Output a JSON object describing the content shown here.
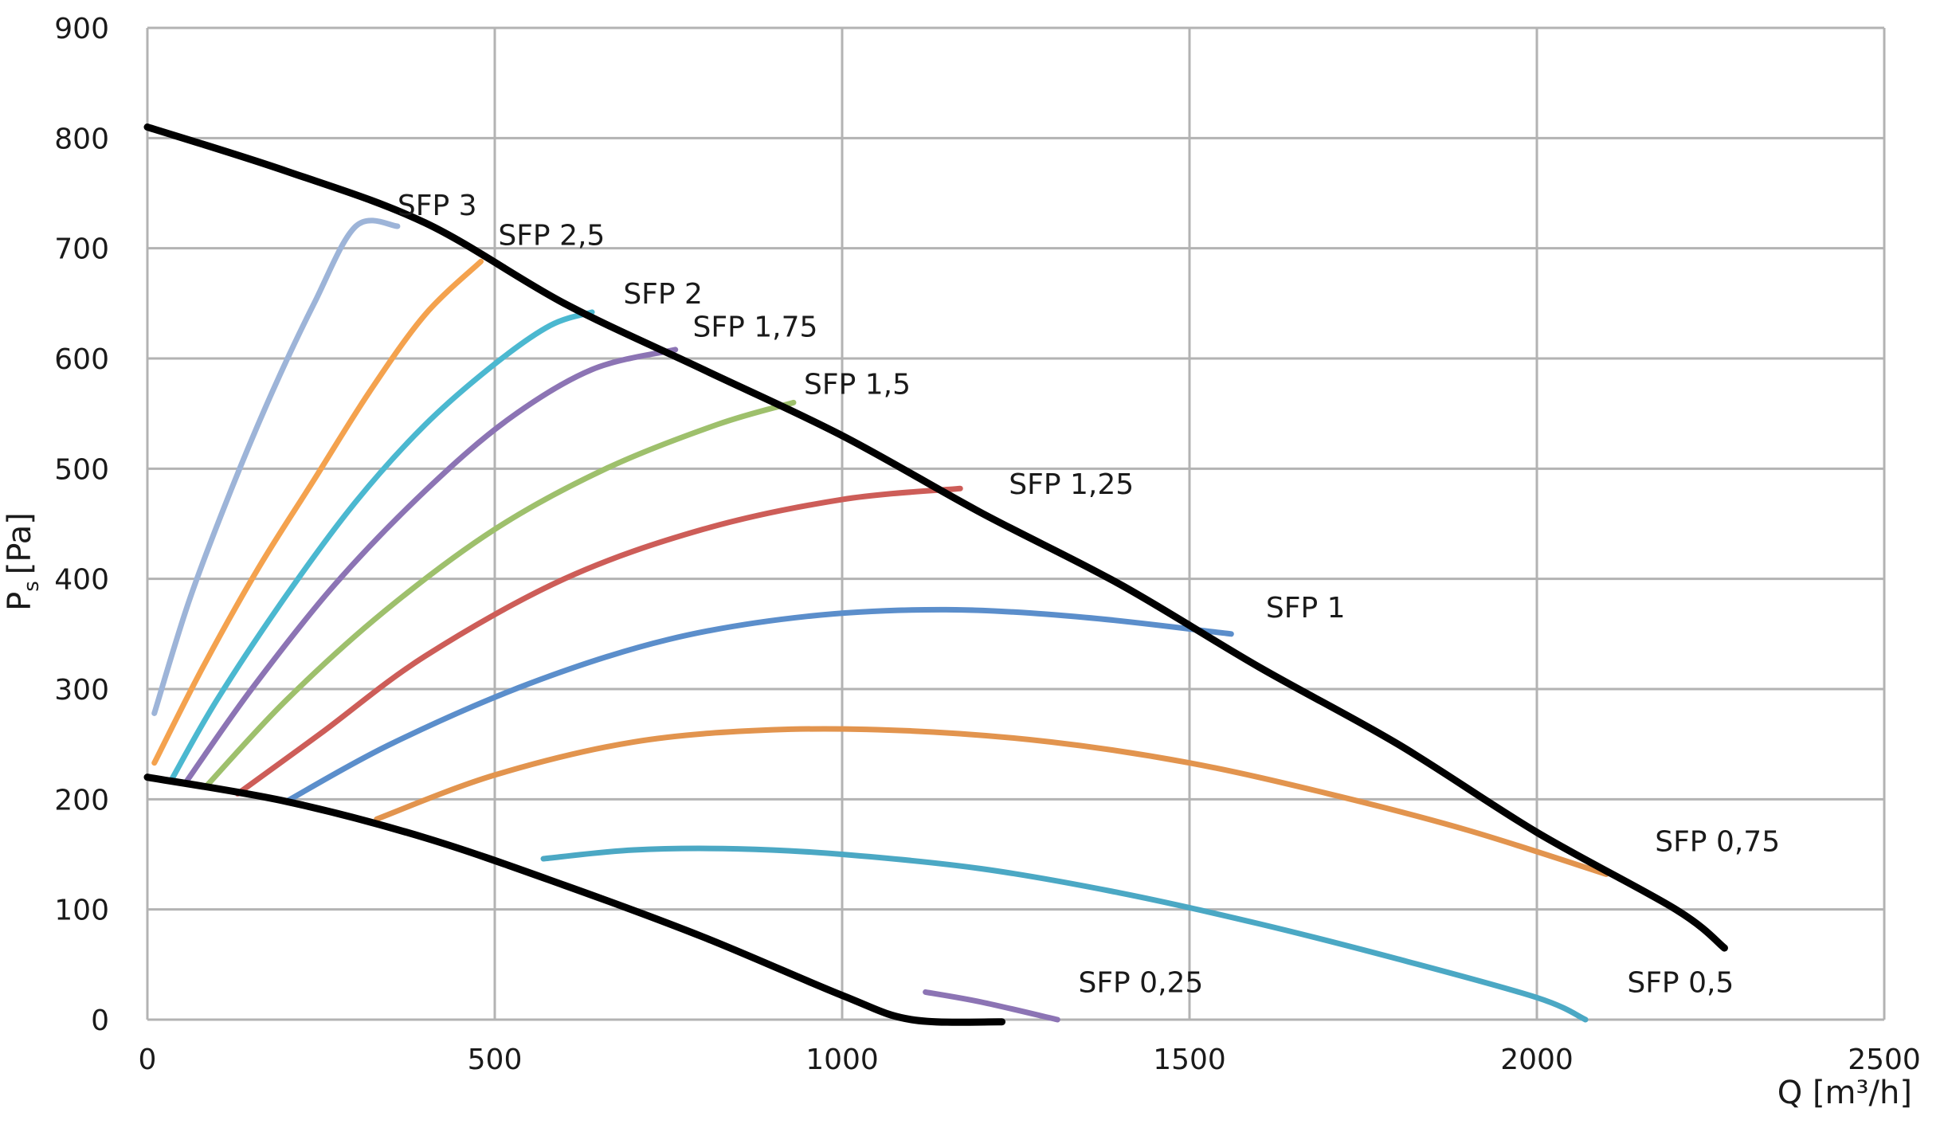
{
  "chart_data": {
    "type": "line",
    "xlabel": "Q [m³/h]",
    "ylabel_main": "P",
    "ylabel_sub": "s",
    "ylabel_unit": "[Pa]",
    "xlim": [
      0,
      2500
    ],
    "ylim": [
      0,
      900
    ],
    "xticks": [
      0,
      500,
      1000,
      1500,
      2000,
      2500
    ],
    "yticks": [
      0,
      100,
      200,
      300,
      400,
      500,
      600,
      700,
      800,
      900
    ],
    "grid": true,
    "legend": "none",
    "series": [
      {
        "name": "SFP 3",
        "color": "#9db4d8",
        "points": [
          [
            10,
            278
          ],
          [
            60,
            380
          ],
          [
            120,
            480
          ],
          [
            180,
            570
          ],
          [
            240,
            650
          ],
          [
            300,
            720
          ],
          [
            360,
            720
          ]
        ]
      },
      {
        "name": "SFP 2,5",
        "color": "#f4a24e",
        "points": [
          [
            10,
            233
          ],
          [
            80,
            320
          ],
          [
            160,
            410
          ],
          [
            240,
            490
          ],
          [
            320,
            570
          ],
          [
            400,
            640
          ],
          [
            480,
            688
          ]
        ]
      },
      {
        "name": "SFP 2",
        "color": "#4bb8d0",
        "points": [
          [
            35,
            218
          ],
          [
            100,
            290
          ],
          [
            200,
            385
          ],
          [
            300,
            470
          ],
          [
            400,
            540
          ],
          [
            500,
            595
          ],
          [
            580,
            630
          ],
          [
            640,
            642
          ]
        ]
      },
      {
        "name": "SFP 1,75",
        "color": "#8c74b4",
        "points": [
          [
            55,
            215
          ],
          [
            150,
            300
          ],
          [
            270,
            395
          ],
          [
            400,
            480
          ],
          [
            520,
            545
          ],
          [
            640,
            590
          ],
          [
            760,
            608
          ]
        ]
      },
      {
        "name": "SFP 1,5",
        "color": "#9ec06c",
        "points": [
          [
            85,
            212
          ],
          [
            200,
            290
          ],
          [
            340,
            370
          ],
          [
            500,
            445
          ],
          [
            660,
            500
          ],
          [
            820,
            540
          ],
          [
            930,
            560
          ]
        ]
      },
      {
        "name": "SFP 1,25",
        "color": "#cd5d58",
        "points": [
          [
            130,
            205
          ],
          [
            250,
            260
          ],
          [
            400,
            330
          ],
          [
            600,
            400
          ],
          [
            800,
            445
          ],
          [
            1000,
            472
          ],
          [
            1170,
            482
          ]
        ]
      },
      {
        "name": "SFP 1",
        "color": "#5b8ecb",
        "points": [
          [
            200,
            198
          ],
          [
            350,
            250
          ],
          [
            550,
            305
          ],
          [
            750,
            345
          ],
          [
            950,
            366
          ],
          [
            1150,
            372
          ],
          [
            1350,
            365
          ],
          [
            1560,
            350
          ]
        ]
      },
      {
        "name": "SFP 0,75",
        "color": "#e2944e",
        "points": [
          [
            330,
            182
          ],
          [
            500,
            222
          ],
          [
            700,
            252
          ],
          [
            900,
            263
          ],
          [
            1100,
            262
          ],
          [
            1300,
            252
          ],
          [
            1500,
            233
          ],
          [
            1700,
            205
          ],
          [
            1900,
            172
          ],
          [
            2100,
            132
          ]
        ]
      },
      {
        "name": "SFP 0,5",
        "color": "#4ba8c4",
        "points": [
          [
            570,
            146
          ],
          [
            700,
            154
          ],
          [
            850,
            155
          ],
          [
            1000,
            150
          ],
          [
            1200,
            137
          ],
          [
            1400,
            115
          ],
          [
            1600,
            87
          ],
          [
            1800,
            55
          ],
          [
            2000,
            20
          ],
          [
            2070,
            0
          ]
        ]
      },
      {
        "name": "SFP 0,25",
        "color": "#8c74b4",
        "points": [
          [
            1120,
            25
          ],
          [
            1200,
            16
          ],
          [
            1310,
            0
          ]
        ]
      }
    ],
    "boundaries": [
      {
        "color": "#000000",
        "points": [
          [
            0,
            810
          ],
          [
            200,
            770
          ],
          [
            400,
            723
          ],
          [
            600,
            650
          ],
          [
            800,
            590
          ],
          [
            1000,
            530
          ],
          [
            1200,
            460
          ],
          [
            1400,
            395
          ],
          [
            1600,
            320
          ],
          [
            1800,
            250
          ],
          [
            2000,
            170
          ],
          [
            2200,
            100
          ],
          [
            2270,
            65
          ]
        ]
      },
      {
        "color": "#000000",
        "points": [
          [
            0,
            220
          ],
          [
            200,
            198
          ],
          [
            400,
            165
          ],
          [
            600,
            122
          ],
          [
            800,
            75
          ],
          [
            1000,
            22
          ],
          [
            1100,
            0
          ],
          [
            1230,
            -2
          ]
        ]
      }
    ],
    "labels": [
      {
        "text": "SFP 3",
        "x": 360,
        "y": 730
      },
      {
        "text": "SFP 2,5",
        "x": 505,
        "y": 703
      },
      {
        "text": "SFP 2",
        "x": 685,
        "y": 650
      },
      {
        "text": "SFP 1,75",
        "x": 785,
        "y": 620
      },
      {
        "text": "SFP 1,5",
        "x": 945,
        "y": 568
      },
      {
        "text": "SFP 1,25",
        "x": 1240,
        "y": 477
      },
      {
        "text": "SFP 1",
        "x": 1610,
        "y": 365
      },
      {
        "text": "SFP 0,75",
        "x": 2170,
        "y": 153
      },
      {
        "text": "SFP 0,5",
        "x": 2130,
        "y": 25
      },
      {
        "text": "SFP 0,25",
        "x": 1340,
        "y": 25
      }
    ]
  }
}
